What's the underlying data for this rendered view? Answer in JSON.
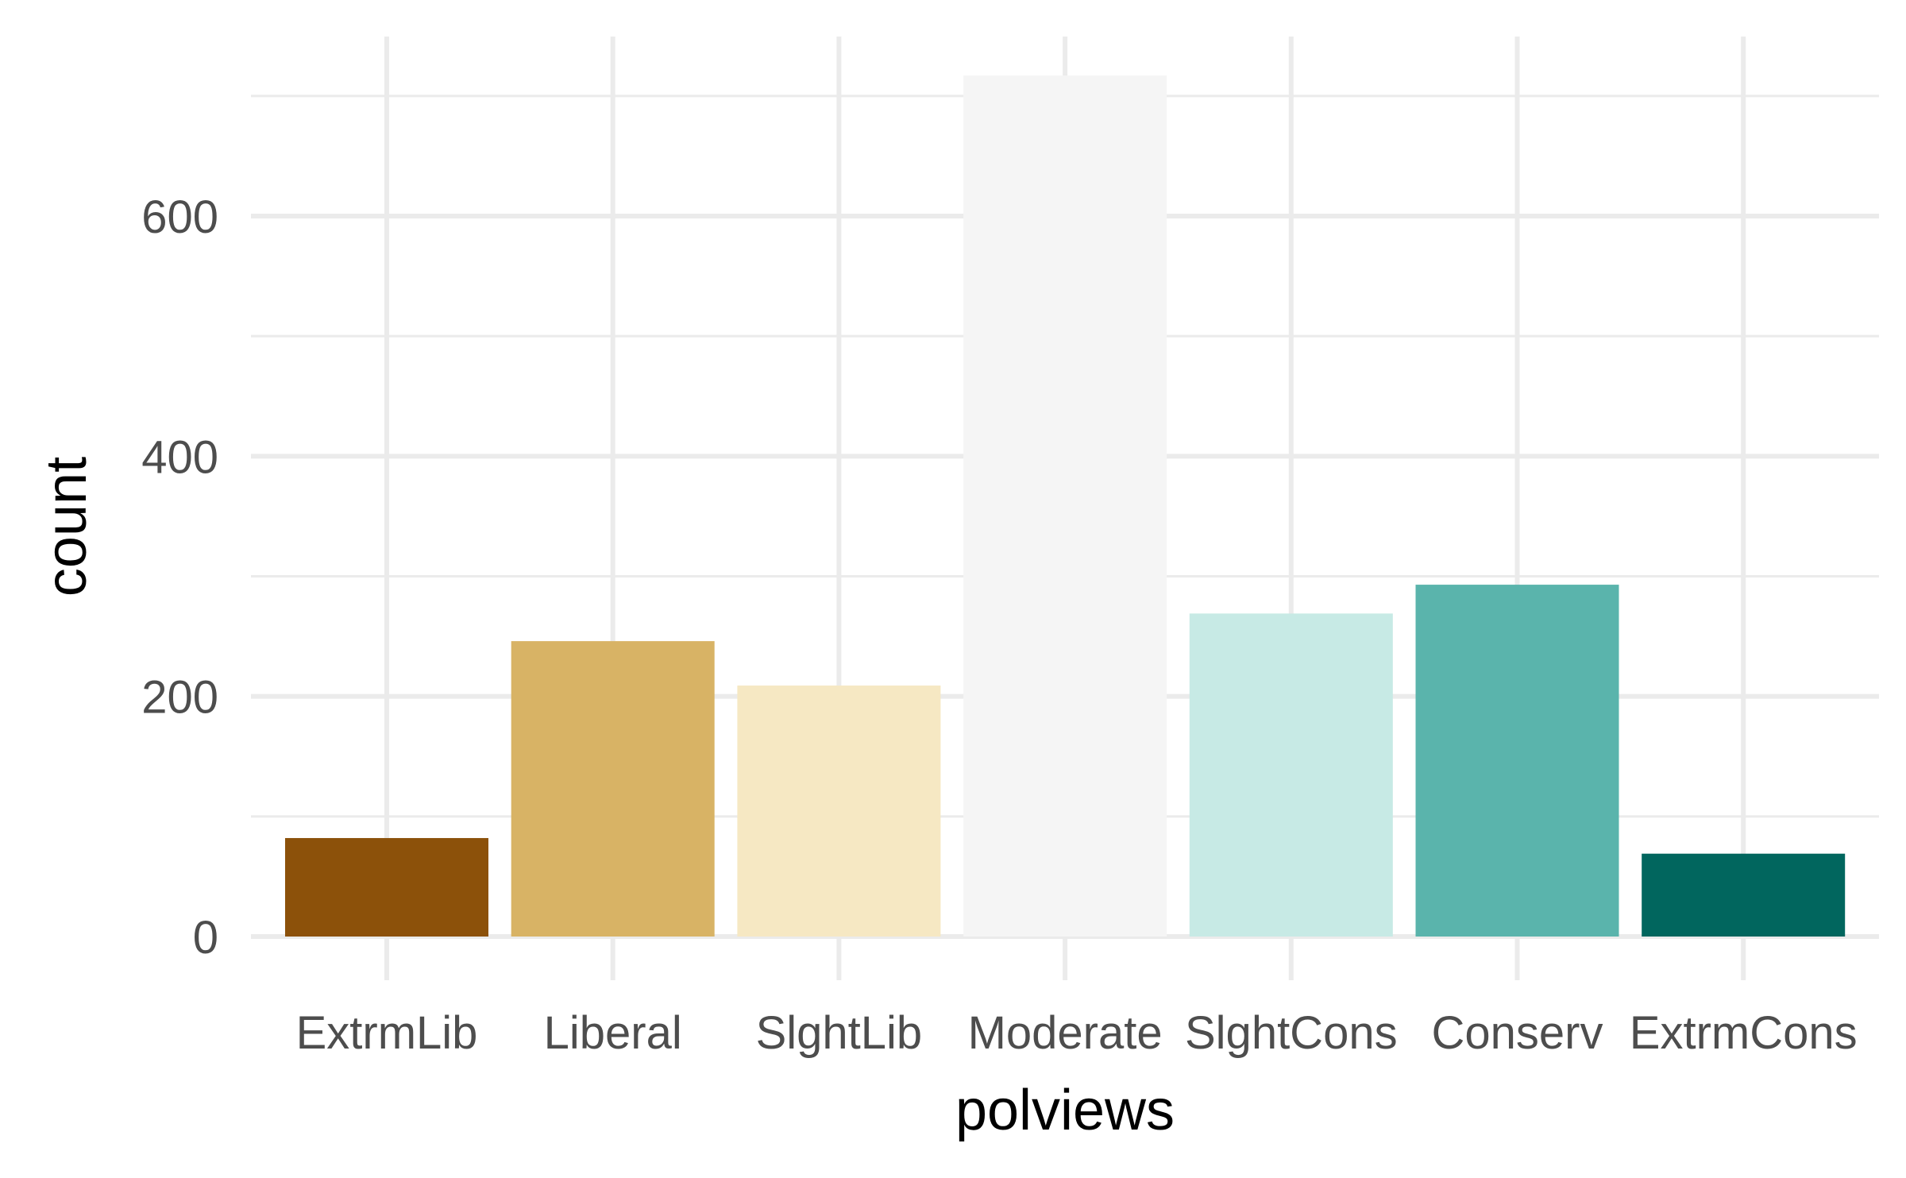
{
  "chart_data": {
    "type": "bar",
    "categories": [
      "ExtrmLib",
      "Liberal",
      "SlghtLib",
      "Moderate",
      "SlghtCons",
      "Conserv",
      "ExtrmCons"
    ],
    "values": [
      82,
      246,
      209,
      717,
      269,
      293,
      69
    ],
    "colors": [
      "#8C510A",
      "#D8B365",
      "#F6E8C3",
      "#F5F5F5",
      "#C7EAE5",
      "#5AB4AC",
      "#01665E"
    ],
    "xlabel": "polviews",
    "ylabel": "count",
    "ylim": [
      0,
      717
    ],
    "yticks": [
      0,
      200,
      400,
      600
    ],
    "grid": true,
    "legend": "none"
  }
}
